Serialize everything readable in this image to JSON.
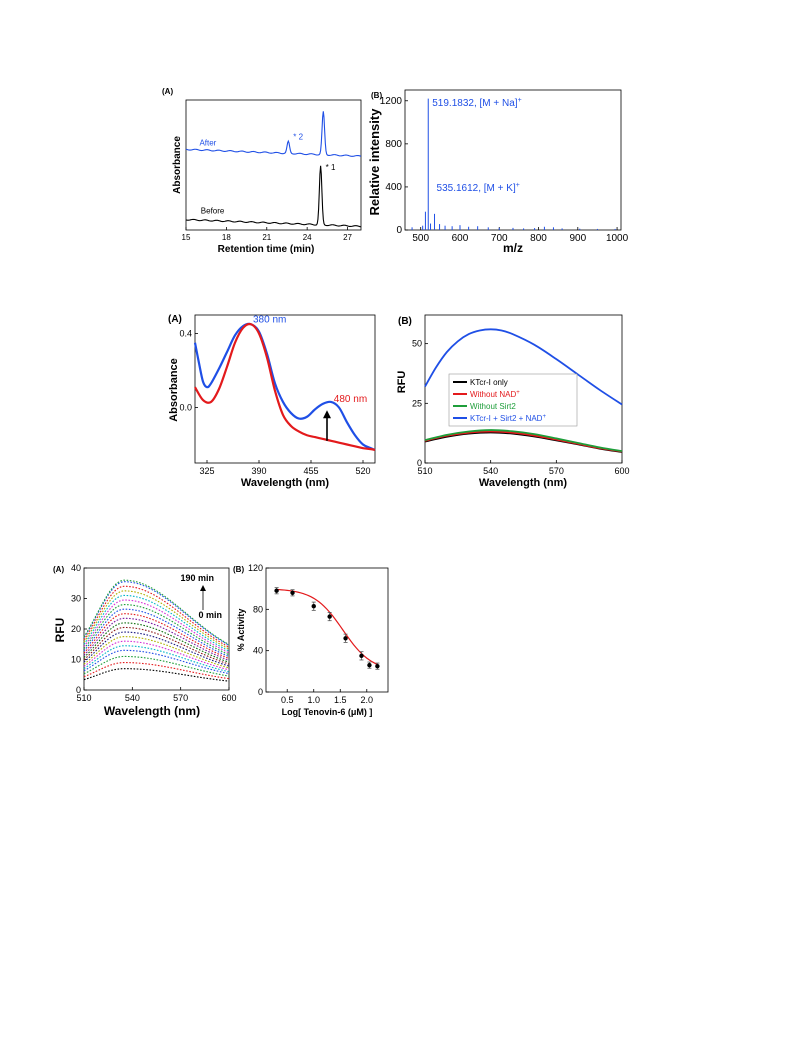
{
  "chart_data": [
    {
      "id": "hplc",
      "type": "line",
      "panel": "(A)",
      "xlabel": "Retention time (min)",
      "ylabel": "Absorbance",
      "xlim": [
        15,
        28
      ],
      "xticks": [
        "15",
        "18",
        "21",
        "24",
        "27"
      ],
      "xticks_values": [
        15,
        18,
        21,
        24,
        27
      ],
      "grid": false,
      "series": [
        {
          "name": "After",
          "color": "#1f4fe6",
          "baseline": 0.62,
          "peaks": [
            {
              "x": 22.6,
              "height": 0.09,
              "label": "* 2"
            },
            {
              "x": 25.2,
              "height": 0.33,
              "label": ""
            }
          ]
        },
        {
          "name": "Before",
          "color": "#000000",
          "baseline": 0.08,
          "peaks": [
            {
              "x": 25.0,
              "height": 0.45,
              "label": "* 1"
            }
          ]
        }
      ]
    },
    {
      "id": "ms",
      "type": "bar",
      "panel": "(B)",
      "xlabel": "m/z",
      "ylabel": "Relative intensity",
      "xlim": [
        460,
        1010
      ],
      "ylim": [
        0,
        1300
      ],
      "xticks": [
        "500",
        "600",
        "700",
        "800",
        "900",
        "1000"
      ],
      "xticks_values": [
        500,
        600,
        700,
        800,
        900,
        1000
      ],
      "yticks": [
        "0",
        "400",
        "800",
        "1200"
      ],
      "yticks_values": [
        0,
        400,
        800,
        1200
      ],
      "grid": false,
      "color": "#1f4fe6",
      "annotations": [
        {
          "text": "519.1832, [M + Na]",
          "sup": "+",
          "x": 519.18,
          "y": 1200
        },
        {
          "text": "535.1612, [M + K]",
          "sup": "+",
          "x": 535.16,
          "y": 360
        }
      ],
      "peaks": [
        {
          "x": 478,
          "y": 25
        },
        {
          "x": 505,
          "y": 40
        },
        {
          "x": 512,
          "y": 170
        },
        {
          "x": 519.18,
          "y": 1220
        },
        {
          "x": 525,
          "y": 60
        },
        {
          "x": 535.16,
          "y": 150
        },
        {
          "x": 548,
          "y": 55
        },
        {
          "x": 562,
          "y": 40
        },
        {
          "x": 580,
          "y": 35
        },
        {
          "x": 600,
          "y": 45
        },
        {
          "x": 622,
          "y": 30
        },
        {
          "x": 645,
          "y": 35
        },
        {
          "x": 672,
          "y": 25
        },
        {
          "x": 700,
          "y": 20
        },
        {
          "x": 735,
          "y": 20
        },
        {
          "x": 762,
          "y": 15
        },
        {
          "x": 790,
          "y": 18
        },
        {
          "x": 815,
          "y": 30
        },
        {
          "x": 838,
          "y": 25
        },
        {
          "x": 860,
          "y": 15
        },
        {
          "x": 905,
          "y": 12
        },
        {
          "x": 950,
          "y": 10
        },
        {
          "x": 995,
          "y": 10
        }
      ]
    },
    {
      "id": "uvvis",
      "type": "line",
      "panel": "(A)",
      "xlabel": "Wavelength (nm)",
      "ylabel": "Absorbance",
      "xlim": [
        310,
        535
      ],
      "ylim": [
        -0.3,
        0.5
      ],
      "xticks": [
        "325",
        "390",
        "455",
        "520"
      ],
      "xticks_values": [
        325,
        390,
        455,
        520
      ],
      "yticks": [
        "0.0",
        "0.4"
      ],
      "yticks_values": [
        0.0,
        0.4
      ],
      "grid": false,
      "annotations": [
        {
          "text": "380 nm",
          "x": 380,
          "y": 0.46,
          "color": "#1f4fe6"
        },
        {
          "text": "480 nm",
          "x": 486,
          "y": 0.03,
          "color": "#e31a1c"
        }
      ],
      "arrow": {
        "x": 475,
        "y_from": -0.18,
        "y_to": -0.02
      },
      "series": [
        {
          "name": "",
          "color": "#1f4fe6",
          "x": [
            310,
            315,
            320,
            325,
            330,
            340,
            350,
            360,
            370,
            380,
            390,
            400,
            410,
            420,
            430,
            440,
            450,
            460,
            470,
            480,
            490,
            500,
            510,
            520,
            530,
            535
          ],
          "y": [
            0.35,
            0.24,
            0.14,
            0.11,
            0.13,
            0.21,
            0.3,
            0.39,
            0.44,
            0.45,
            0.41,
            0.29,
            0.13,
            0.03,
            -0.03,
            -0.06,
            -0.05,
            -0.01,
            0.02,
            0.03,
            0.0,
            -0.08,
            -0.15,
            -0.2,
            -0.22,
            -0.23
          ]
        },
        {
          "name": "",
          "color": "#e31a1c",
          "x": [
            310,
            320,
            330,
            340,
            350,
            360,
            370,
            380,
            390,
            400,
            410,
            420,
            430,
            440,
            450,
            460,
            470,
            480,
            490,
            500,
            510,
            520,
            530,
            535
          ],
          "y": [
            0.11,
            0.04,
            0.03,
            0.1,
            0.22,
            0.35,
            0.43,
            0.45,
            0.4,
            0.27,
            0.09,
            -0.04,
            -0.1,
            -0.13,
            -0.15,
            -0.16,
            -0.17,
            -0.18,
            -0.19,
            -0.2,
            -0.21,
            -0.22,
            -0.225,
            -0.23
          ]
        }
      ]
    },
    {
      "id": "fluor",
      "type": "line",
      "panel": "(B)",
      "xlabel": "Wavelength (nm)",
      "ylabel": "RFU",
      "xlim": [
        510,
        600
      ],
      "ylim": [
        0,
        62
      ],
      "xticks": [
        "510",
        "540",
        "570",
        "600"
      ],
      "xticks_values": [
        510,
        540,
        570,
        600
      ],
      "yticks": [
        "0",
        "25",
        "50"
      ],
      "yticks_values": [
        0,
        25,
        50
      ],
      "grid": false,
      "legend_position": "center-left",
      "series": [
        {
          "name": "KTcr-I only",
          "name_sup": "",
          "color": "#000000",
          "x": [
            510,
            520,
            530,
            540,
            550,
            560,
            570,
            580,
            590,
            600
          ],
          "y": [
            9.0,
            11.0,
            12.3,
            12.8,
            12.3,
            11.1,
            9.5,
            7.8,
            6.0,
            4.6
          ]
        },
        {
          "name": "Without NAD",
          "name_sup": "+",
          "color": "#e31a1c",
          "x": [
            510,
            520,
            530,
            540,
            550,
            560,
            570,
            580,
            590,
            600
          ],
          "y": [
            9.3,
            11.4,
            12.7,
            13.2,
            12.7,
            11.5,
            9.8,
            8.0,
            6.2,
            4.8
          ]
        },
        {
          "name": "Without Sirt2",
          "name_sup": "",
          "color": "#1e9e3a",
          "x": [
            510,
            520,
            530,
            540,
            550,
            560,
            570,
            580,
            590,
            600
          ],
          "y": [
            9.6,
            11.8,
            13.2,
            13.8,
            13.3,
            12.1,
            10.3,
            8.4,
            6.5,
            5.0
          ]
        },
        {
          "name": "KTcr-I + Sirt2 + NAD",
          "name_sup": "+",
          "color": "#1f4fe6",
          "x": [
            510,
            515,
            520,
            525,
            530,
            535,
            540,
            545,
            550,
            560,
            570,
            580,
            590,
            600
          ],
          "y": [
            32.0,
            40.0,
            46.5,
            51.0,
            54.0,
            55.5,
            56.0,
            55.5,
            54.0,
            49.5,
            43.5,
            37.0,
            30.5,
            24.5
          ]
        }
      ]
    },
    {
      "id": "timecourse",
      "type": "line",
      "panel": "(A)",
      "xlabel": "Wavelength (nm)",
      "ylabel": "RFU",
      "xlim": [
        510,
        600
      ],
      "ylim": [
        0,
        40
      ],
      "xticks": [
        "510",
        "540",
        "570",
        "600"
      ],
      "xticks_values": [
        510,
        540,
        570,
        600
      ],
      "yticks": [
        "0",
        "10",
        "20",
        "30",
        "40"
      ],
      "yticks_values": [
        0,
        10,
        20,
        30,
        40
      ],
      "grid": false,
      "arrow_label_top": "190 min",
      "arrow_label_bottom": "0 min",
      "curve_peak_x": 535,
      "series_peaks": [
        7,
        9,
        11,
        13,
        14.5,
        16,
        17.5,
        19,
        20.5,
        22,
        23.5,
        25,
        26.5,
        28,
        29.5,
        31,
        32.5,
        34,
        35.5,
        36
      ],
      "series_colors": [
        "#000000",
        "#e31a1c",
        "#1e9e3a",
        "#1f4fe6",
        "#00b5c8",
        "#d62fd6",
        "#b0b000",
        "#1a1a80",
        "#8b1a1a",
        "#0f6e0f",
        "#7a1aa0",
        "#e31a1c",
        "#1f4fe6",
        "#1e9e3a",
        "#d62fd6",
        "#00b5c8",
        "#b0b000",
        "#e31a1c",
        "#1f4fe6",
        "#1e9e3a"
      ]
    },
    {
      "id": "inhibition",
      "type": "scatter",
      "panel": "(B)",
      "xlabel": "Log[ Tenovin-6 (μM) ]",
      "ylabel": "% Activity",
      "xlim": [
        0.1,
        2.4
      ],
      "ylim": [
        0,
        120
      ],
      "xticks": [
        "0.5",
        "1.0",
        "1.5",
        "2.0"
      ],
      "xticks_values": [
        0.5,
        1.0,
        1.5,
        2.0
      ],
      "yticks": [
        "0",
        "40",
        "80",
        "120"
      ],
      "yticks_values": [
        0,
        40,
        80,
        120
      ],
      "grid": false,
      "fit_color": "#e31a1c",
      "point_color": "#000000",
      "x": [
        0.3,
        0.6,
        1.0,
        1.3,
        1.6,
        1.9,
        2.05,
        2.2
      ],
      "y": [
        98,
        96,
        83,
        73,
        52,
        35,
        26,
        25
      ],
      "err": [
        3,
        3,
        4,
        4,
        4,
        4,
        3,
        3
      ],
      "fit": {
        "top": 100,
        "bottom": 20,
        "logIC50": 1.55,
        "hill": 1.6
      }
    }
  ]
}
